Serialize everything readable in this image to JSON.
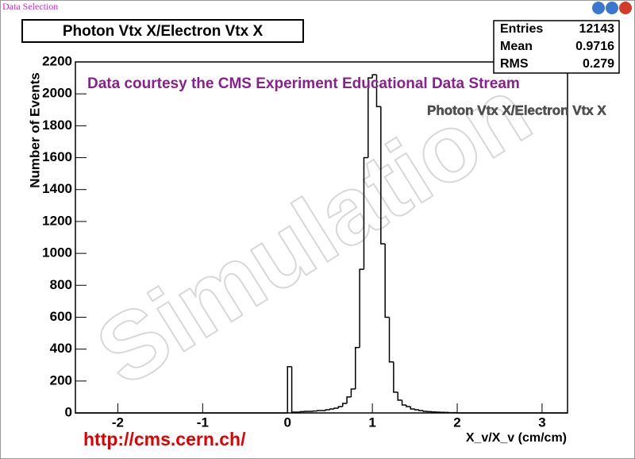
{
  "window": {
    "title": "Data Selection"
  },
  "chart_data": {
    "type": "histogram",
    "title": "Photon Vtx X/Electron Vtx X",
    "x_label": "X_v/X_v (cm/cm)",
    "y_label": "Number of Events",
    "stats": [
      {
        "label": "Entries",
        "value": 12143
      },
      {
        "label": "Mean",
        "value": 0.9716
      },
      {
        "label": "RMS",
        "value": 0.279
      }
    ],
    "annotations": {
      "courtesy": "Data courtesy the CMS Experiment Educational Data Stream",
      "legend": "Photon Vtx X/Electron Vtx X",
      "watermark": "Simulation",
      "url": "http://cms.cern.ch/"
    },
    "bins": [
      -2.5,
      -0.1,
      -0.05,
      0,
      0.05,
      0.1,
      0.15,
      0.2,
      0.25,
      0.3,
      0.35,
      0.4,
      0.45,
      0.5,
      0.55,
      0.6,
      0.65,
      0.7,
      0.75,
      0.8,
      0.85,
      0.9,
      0.95,
      1.0,
      1.05,
      1.1,
      1.15,
      1.2,
      1.25,
      1.3,
      1.35,
      1.4,
      1.45,
      1.5,
      1.55,
      1.6,
      1.65,
      1.7,
      1.75,
      1.8,
      1.85,
      1.9,
      1.95,
      2.0,
      3.3
    ],
    "values": [
      0,
      0,
      0,
      290,
      5,
      5,
      8,
      10,
      10,
      12,
      15,
      15,
      20,
      25,
      30,
      40,
      60,
      100,
      150,
      410,
      900,
      1600,
      2100,
      2120,
      1920,
      1060,
      600,
      320,
      130,
      80,
      50,
      40,
      25,
      20,
      15,
      10,
      8,
      6,
      5,
      4,
      3,
      2,
      2,
      0
    ],
    "color": "#000000",
    "xlim": [
      -2.5,
      3.3
    ],
    "xticks": [
      -2,
      -1,
      0,
      1,
      2,
      3
    ],
    "ylim": [
      0,
      2200
    ],
    "yticks": [
      0,
      200,
      400,
      600,
      800,
      1000,
      1200,
      1400,
      1600,
      1800,
      2000,
      2200
    ]
  }
}
